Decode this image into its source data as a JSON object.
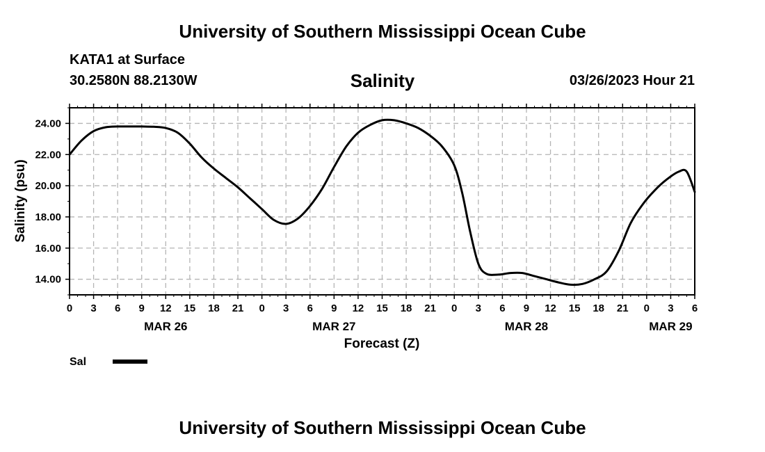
{
  "header": {
    "title": "University of Southern Mississippi Ocean Cube",
    "station": "KATA1 at Surface",
    "coordinates": "30.2580N  88.2130W",
    "datetime": "03/26/2023 Hour 21"
  },
  "footer": {
    "title": "University of Southern Mississippi Ocean Cube"
  },
  "chart_data": {
    "type": "line",
    "title": "Salinity",
    "xlabel": "Forecast (Z)",
    "ylabel": "Salinity (psu)",
    "x_unit": "hours from MAR 26 00Z",
    "xlim": [
      0,
      78
    ],
    "ylim": [
      13,
      25
    ],
    "grid": true,
    "x_ticks": [
      0,
      3,
      6,
      9,
      12,
      15,
      18,
      21,
      24,
      27,
      30,
      33,
      36,
      39,
      42,
      45,
      48,
      51,
      54,
      57,
      60,
      63,
      66,
      69,
      72,
      75,
      78
    ],
    "x_tick_labels": [
      "0",
      "3",
      "6",
      "9",
      "12",
      "15",
      "18",
      "21",
      "0",
      "3",
      "6",
      "9",
      "12",
      "15",
      "18",
      "21",
      "0",
      "3",
      "6",
      "9",
      "12",
      "15",
      "18",
      "21",
      "0",
      "3",
      "6"
    ],
    "y_ticks": [
      14,
      16,
      18,
      20,
      22,
      24
    ],
    "y_tick_labels": [
      "14.00",
      "16.00",
      "18.00",
      "20.00",
      "22.00",
      "24.00"
    ],
    "date_labels": [
      {
        "label": "MAR 26",
        "x": 12
      },
      {
        "label": "MAR 27",
        "x": 33
      },
      {
        "label": "MAR 28",
        "x": 57
      },
      {
        "label": "MAR 29",
        "x": 75
      }
    ],
    "legend": {
      "label": "Sal",
      "placement": "bottom-left"
    },
    "series": [
      {
        "name": "Sal",
        "x": [
          0,
          1.5,
          3,
          4.5,
          6,
          7.5,
          9,
          10.5,
          12,
          13.5,
          15,
          16.5,
          18,
          19.5,
          21,
          22.5,
          24,
          25.5,
          27,
          28.5,
          30,
          31.5,
          33,
          34.5,
          36,
          37.5,
          39,
          40.5,
          42,
          43.5,
          45,
          46.5,
          48,
          49,
          50,
          51,
          52,
          53.5,
          55,
          56.5,
          58,
          59.5,
          61,
          62.5,
          64,
          65.5,
          67,
          68.5,
          70,
          71.5,
          73,
          74.5,
          76,
          77,
          78
        ],
        "y": [
          22.0,
          22.9,
          23.5,
          23.75,
          23.8,
          23.8,
          23.8,
          23.78,
          23.7,
          23.4,
          22.7,
          21.8,
          21.1,
          20.5,
          19.9,
          19.2,
          18.5,
          17.8,
          17.55,
          17.9,
          18.7,
          19.8,
          21.2,
          22.5,
          23.4,
          23.9,
          24.2,
          24.2,
          24.0,
          23.7,
          23.2,
          22.5,
          21.3,
          19.5,
          17.0,
          15.0,
          14.35,
          14.3,
          14.4,
          14.4,
          14.2,
          14.0,
          13.8,
          13.65,
          13.7,
          14.0,
          14.5,
          15.8,
          17.6,
          18.8,
          19.7,
          20.4,
          20.9,
          20.9,
          19.6
        ]
      }
    ]
  }
}
